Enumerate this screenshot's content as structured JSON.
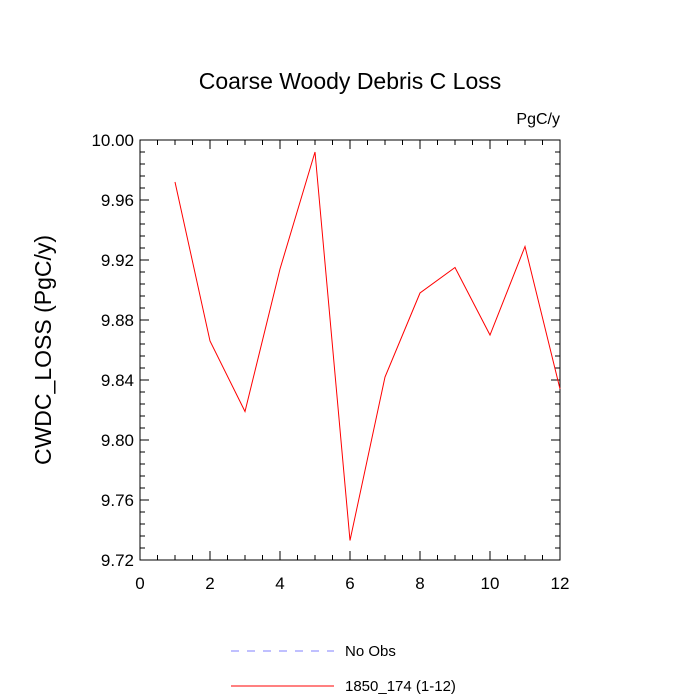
{
  "chart_data": {
    "type": "line",
    "title": "Coarse Woody Debris C Loss",
    "units_label": "PgC/y",
    "ylabel": "CWDC_LOSS  (PgC/y)",
    "xlabel": "",
    "xlim": [
      0,
      12
    ],
    "ylim": [
      9.72,
      10.0
    ],
    "x_ticks": [
      0,
      2,
      4,
      6,
      8,
      10,
      12
    ],
    "y_ticks": [
      9.72,
      9.76,
      9.8,
      9.84,
      9.88,
      9.92,
      9.96,
      10.0
    ],
    "x_tick_labels": [
      "0",
      "2",
      "4",
      "6",
      "8",
      "10",
      "12"
    ],
    "y_tick_labels": [
      "9.72",
      "9.76",
      "9.80",
      "9.84",
      "9.88",
      "9.92",
      "9.96",
      "10.00"
    ],
    "grid": false,
    "legend_position": "bottom",
    "series": [
      {
        "name": "No Obs",
        "color": "#8080ff",
        "dash": "dashed",
        "x": [],
        "values": []
      },
      {
        "name": "1850_174 (1-12)",
        "color": "#ff0000",
        "dash": "solid",
        "x": [
          1,
          2,
          3,
          4,
          5,
          6,
          7,
          8,
          9,
          10,
          11,
          12
        ],
        "values": [
          9.972,
          9.866,
          9.819,
          9.914,
          9.992,
          9.733,
          9.842,
          9.898,
          9.915,
          9.87,
          9.929,
          9.834
        ]
      }
    ]
  }
}
